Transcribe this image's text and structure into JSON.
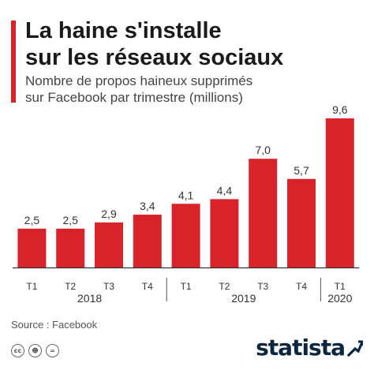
{
  "header": {
    "title_line1": "La haine s'installe",
    "title_line2": "sur les réseaux sociaux",
    "subtitle_line1": "Nombre de propos haineux supprimés",
    "subtitle_line2": "sur Facebook par trimestre (millions)"
  },
  "footer": {
    "source": "Source : Facebook",
    "brand": "statista",
    "license_icons": [
      "cc-icon",
      "by-icon",
      "nd-icon"
    ]
  },
  "colors": {
    "bar": "#d8232a",
    "accent": "#d8232a",
    "brand": "#0b2640"
  },
  "chart_data": {
    "type": "bar",
    "title": "La haine s'installe sur les réseaux sociaux",
    "subtitle": "Nombre de propos haineux supprimés sur Facebook par trimestre (millions)",
    "categories": [
      "T1",
      "T2",
      "T3",
      "T4",
      "T1",
      "T2",
      "T3",
      "T4",
      "T1"
    ],
    "groups": [
      {
        "label": "2018",
        "start": 0,
        "end": 3
      },
      {
        "label": "2019",
        "start": 4,
        "end": 7
      },
      {
        "label": "2020",
        "start": 8,
        "end": 8
      }
    ],
    "values": [
      2.5,
      2.5,
      2.9,
      3.4,
      4.1,
      4.4,
      7.0,
      5.7,
      9.6
    ],
    "value_labels": [
      "2,5",
      "2,5",
      "2,9",
      "3,4",
      "4,1",
      "4,4",
      "7,0",
      "5,7",
      "9,6"
    ],
    "ylim": [
      0,
      9.6
    ],
    "grid": false,
    "legend": "none"
  }
}
